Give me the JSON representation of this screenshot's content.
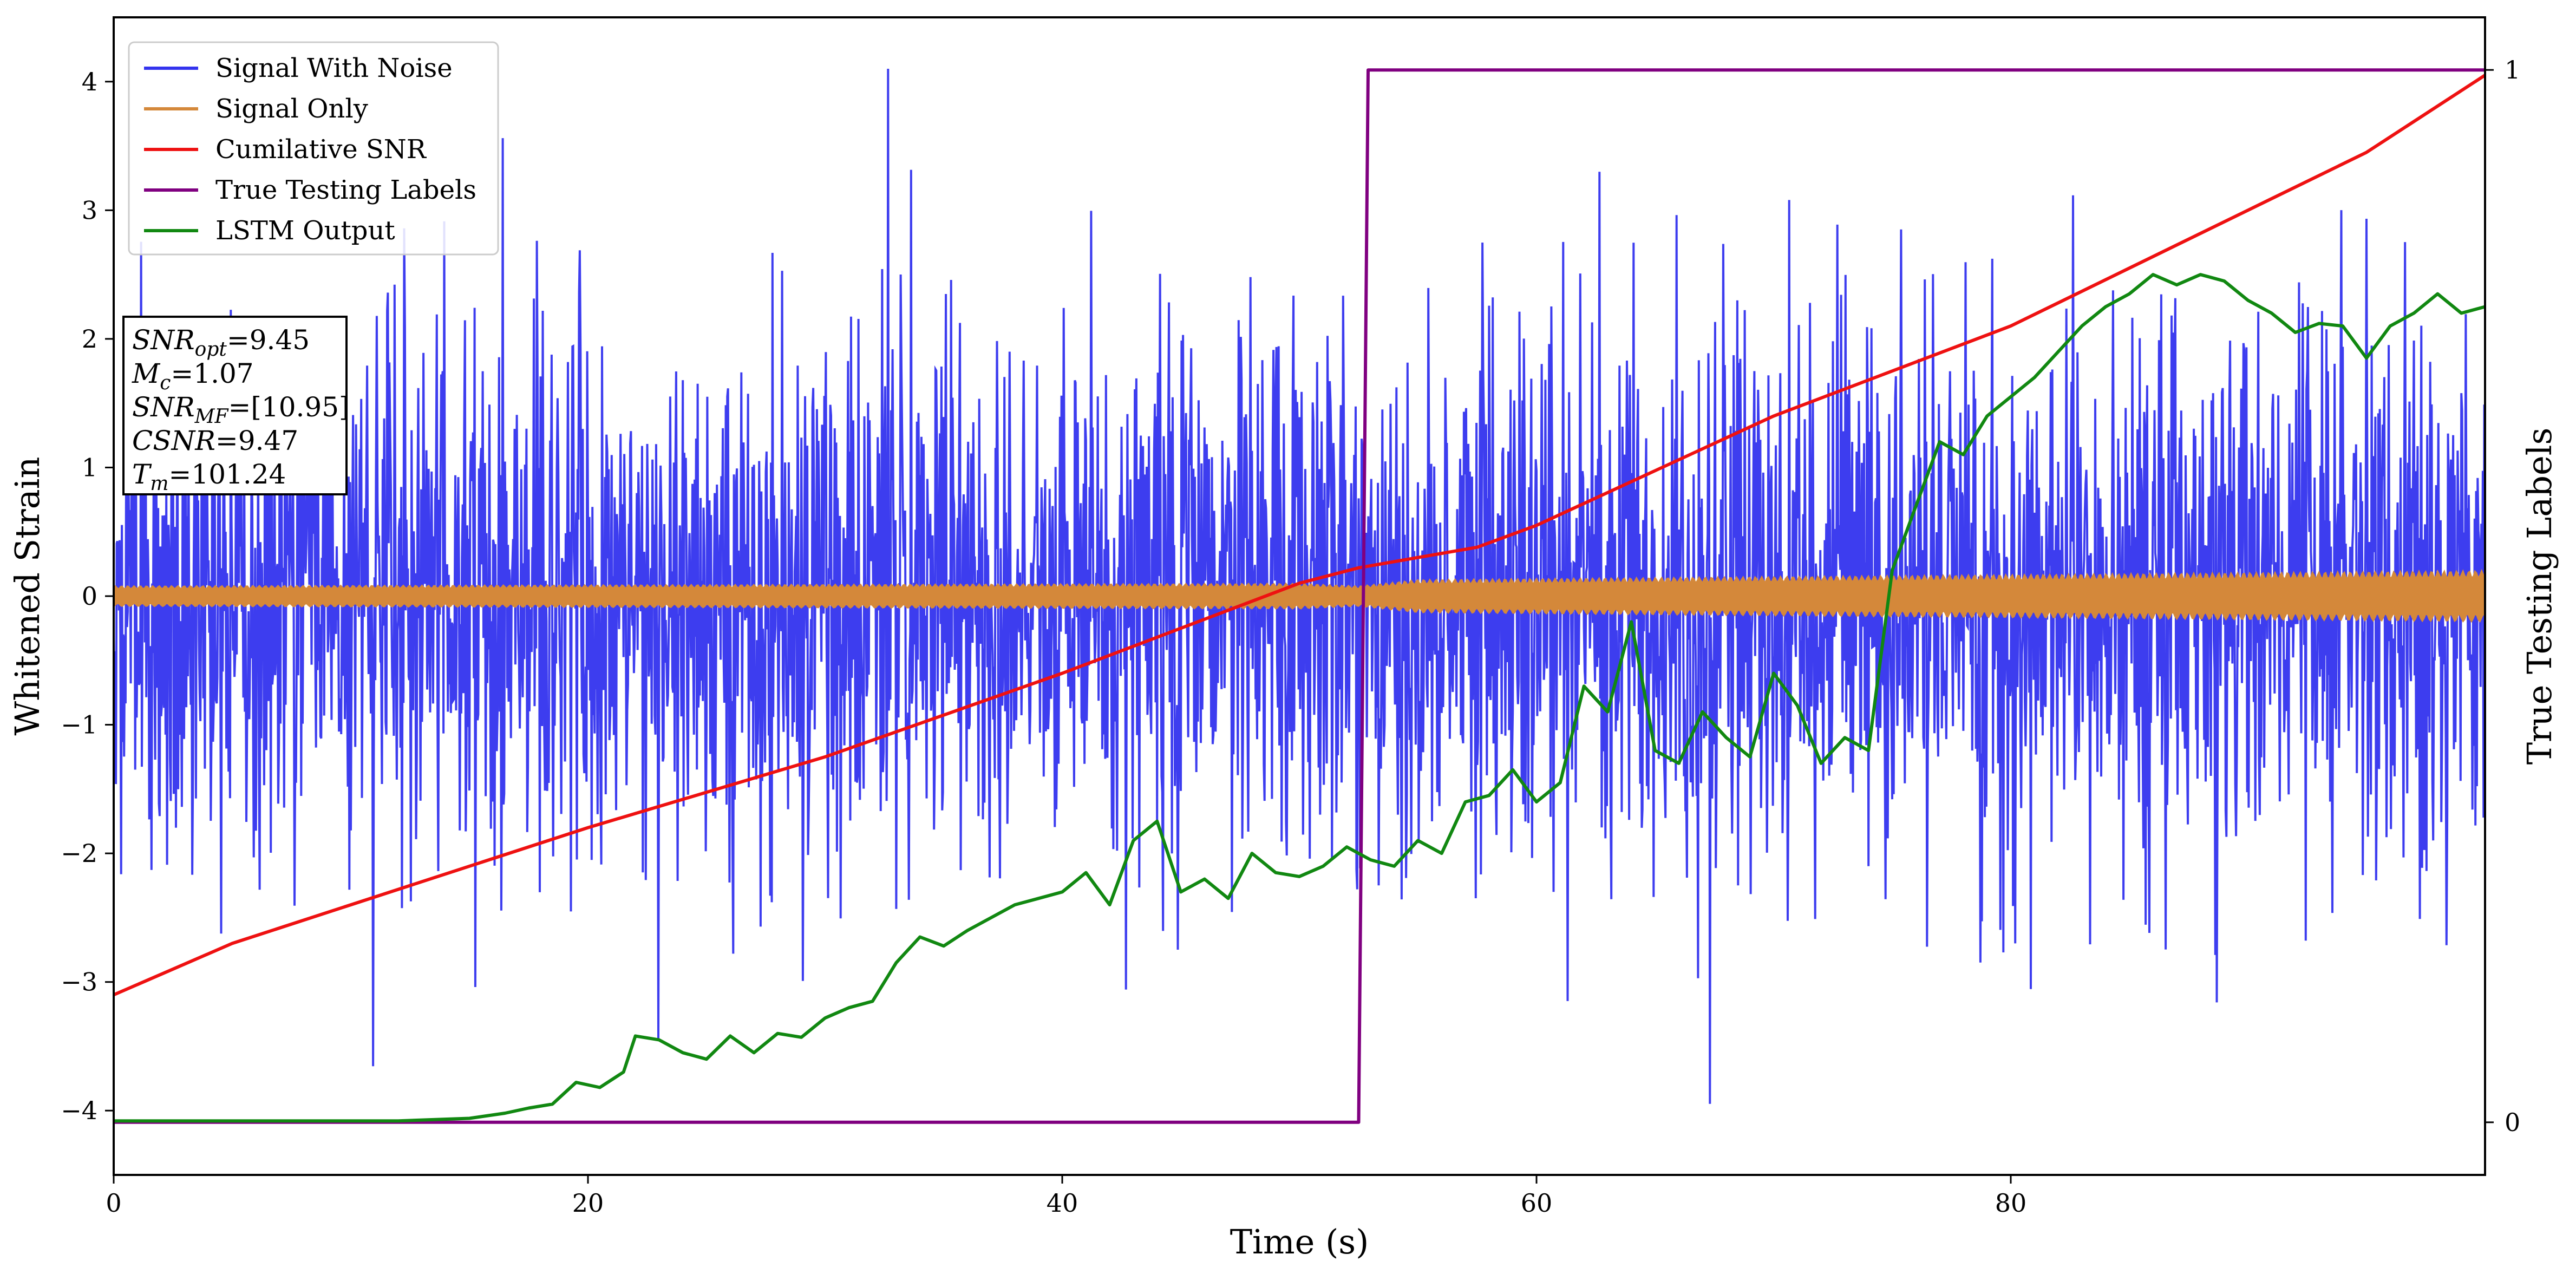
{
  "chart_data": {
    "type": "line",
    "xlabel": "Time (s)",
    "ylabel": "Whitened Strain",
    "y2label": "True Testing Labels",
    "xlim": [
      0,
      100
    ],
    "ylim": [
      -4.5,
      4.5
    ],
    "y2lim": [
      -0.05,
      1.05
    ],
    "x_ticks": [
      0,
      20,
      40,
      60,
      80
    ],
    "y_ticks": [
      -4,
      -3,
      -2,
      -1,
      0,
      1,
      2,
      3,
      4
    ],
    "y2_ticks": [
      0,
      1
    ],
    "legend_position": "top-left",
    "grid": false,
    "colors": {
      "signal_with_noise": "#3333ee",
      "signal_only": "#d4883a",
      "cumulative_snr": "#ee1111",
      "true_labels": "#800080",
      "lstm_output": "#118811"
    },
    "series": [
      {
        "name": "Signal With Noise",
        "axis": "left",
        "description_values": "dense noise, approx. range -4 to 4"
      },
      {
        "name": "Signal Only",
        "axis": "left",
        "envelope": {
          "x": [
            0,
            50,
            52.5,
            55,
            100
          ],
          "amplitude": [
            0.08,
            0.1,
            0.08,
            0.13,
            0.2
          ]
        }
      },
      {
        "name": "Cumilative SNR",
        "axis": "left",
        "x": [
          0,
          5,
          10,
          20,
          30,
          40,
          50,
          52.5,
          55,
          57.5,
          60,
          70,
          80,
          90,
          95,
          100
        ],
        "y": [
          -3.1,
          -2.7,
          -2.4,
          -1.8,
          -1.25,
          -0.6,
          0.1,
          0.22,
          0.3,
          0.38,
          0.55,
          1.4,
          2.1,
          3.0,
          3.45,
          4.05
        ]
      },
      {
        "name": "True Testing Labels",
        "axis": "right",
        "x": [
          0,
          52.5,
          52.9,
          100
        ],
        "y": [
          0,
          0,
          1,
          1
        ]
      },
      {
        "name": "LSTM Output",
        "axis": "left",
        "x": [
          0,
          12,
          15,
          16.5,
          17.5,
          18.5,
          19.5,
          20.5,
          21.5,
          22,
          23,
          24,
          25,
          26,
          27,
          28,
          29,
          30,
          31,
          32,
          33,
          34,
          35,
          36,
          37,
          38,
          39,
          40,
          41,
          42,
          43,
          44,
          45,
          46,
          47,
          48,
          49,
          50,
          51,
          52,
          53,
          54,
          55,
          56,
          57,
          58,
          59,
          60,
          61,
          62,
          63,
          64,
          65,
          66,
          67,
          68,
          69,
          70,
          71,
          72,
          73,
          74,
          75,
          76,
          77,
          78,
          79,
          80,
          81,
          82,
          83,
          84,
          85,
          86,
          87,
          88,
          89,
          90,
          91,
          92,
          93,
          94,
          95,
          96,
          97,
          98,
          99,
          100
        ],
        "y": [
          -4.08,
          -4.08,
          -4.06,
          -4.02,
          -3.98,
          -3.95,
          -3.78,
          -3.82,
          -3.7,
          -3.42,
          -3.45,
          -3.55,
          -3.6,
          -3.42,
          -3.55,
          -3.4,
          -3.43,
          -3.28,
          -3.2,
          -3.15,
          -2.85,
          -2.65,
          -2.72,
          -2.6,
          -2.5,
          -2.4,
          -2.35,
          -2.3,
          -2.15,
          -2.4,
          -1.9,
          -1.75,
          -2.3,
          -2.2,
          -2.35,
          -2.0,
          -2.15,
          -2.18,
          -2.1,
          -1.95,
          -2.05,
          -2.1,
          -1.9,
          -2.0,
          -1.6,
          -1.55,
          -1.35,
          -1.6,
          -1.45,
          -0.7,
          -0.9,
          -0.2,
          -1.2,
          -1.3,
          -0.9,
          -1.1,
          -1.25,
          -0.6,
          -0.85,
          -1.3,
          -1.1,
          -1.2,
          0.2,
          0.7,
          1.2,
          1.1,
          1.4,
          1.55,
          1.7,
          1.9,
          2.1,
          2.25,
          2.35,
          2.5,
          2.42,
          2.5,
          2.45,
          2.3,
          2.2,
          2.05,
          2.12,
          2.1,
          1.85,
          2.1,
          2.2,
          2.35,
          2.2,
          2.25
        ]
      }
    ],
    "info_box": {
      "lines": [
        {
          "var": "SNR",
          "sub": "opt",
          "value": "=9.45"
        },
        {
          "var": "M",
          "sub": "c",
          "value": "=1.07"
        },
        {
          "var": "SNR",
          "sub": "MF",
          "value": "=[10.95]"
        },
        {
          "var": "CSNR",
          "sub": "",
          "value": "=9.47"
        },
        {
          "var": "T",
          "sub": "m",
          "value": "=101.24"
        }
      ]
    }
  }
}
